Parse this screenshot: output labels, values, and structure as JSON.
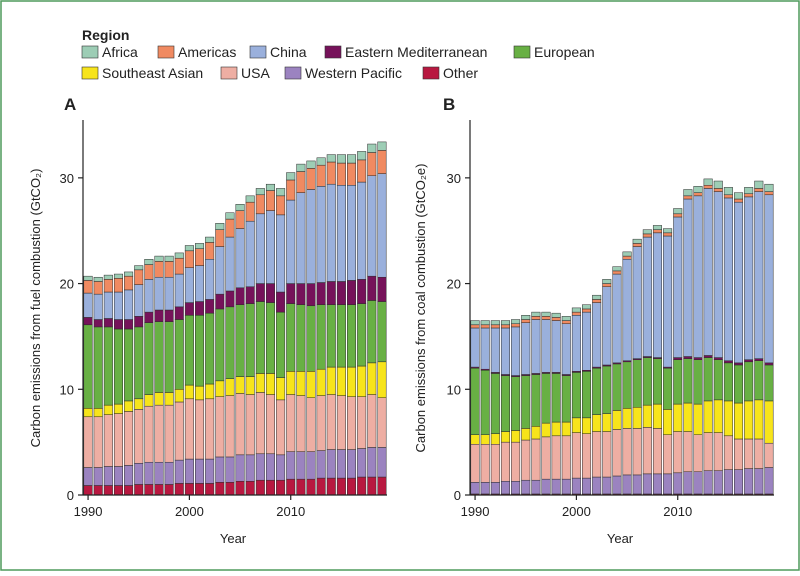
{
  "legend": {
    "title": "Region",
    "entries": [
      {
        "name": "Africa",
        "color": "#9dcdb5"
      },
      {
        "name": "Americas",
        "color": "#f08a61"
      },
      {
        "name": "China",
        "color": "#9ab0dc"
      },
      {
        "name": "Eastern Mediterranean",
        "color": "#76125a"
      },
      {
        "name": "European",
        "color": "#68b044"
      },
      {
        "name": "Southeast Asian",
        "color": "#f7e41b"
      },
      {
        "name": "USA",
        "color": "#eeaea3"
      },
      {
        "name": "Western Pacific",
        "color": "#9b83c0"
      },
      {
        "name": "Other",
        "color": "#b81840"
      }
    ]
  },
  "chart_data": [
    {
      "type": "bar",
      "stacked": true,
      "panel_label": "A",
      "xlabel": "Year",
      "ylabel": "Carbon emissions from fuel combustion (GtCO₂)",
      "ylim": [
        0,
        35
      ],
      "yticks": [
        0,
        10,
        20,
        30
      ],
      "xticks": [
        1990,
        2000,
        2010
      ],
      "categories": [
        1990,
        1991,
        1992,
        1993,
        1994,
        1995,
        1996,
        1997,
        1998,
        1999,
        2000,
        2001,
        2002,
        2003,
        2004,
        2005,
        2006,
        2007,
        2008,
        2009,
        2010,
        2011,
        2012,
        2013,
        2014,
        2015,
        2016,
        2017,
        2018,
        2019
      ],
      "series": [
        {
          "name": "Other",
          "values": [
            0.9,
            0.9,
            0.9,
            0.9,
            0.9,
            1.0,
            1.0,
            1.0,
            1.0,
            1.1,
            1.1,
            1.1,
            1.1,
            1.2,
            1.2,
            1.3,
            1.3,
            1.4,
            1.4,
            1.4,
            1.5,
            1.5,
            1.5,
            1.6,
            1.6,
            1.6,
            1.6,
            1.7,
            1.7,
            1.7
          ]
        },
        {
          "name": "Western Pacific",
          "values": [
            1.7,
            1.7,
            1.8,
            1.8,
            1.9,
            2.0,
            2.1,
            2.1,
            2.1,
            2.2,
            2.3,
            2.3,
            2.3,
            2.4,
            2.4,
            2.5,
            2.5,
            2.5,
            2.5,
            2.4,
            2.6,
            2.6,
            2.6,
            2.6,
            2.7,
            2.7,
            2.7,
            2.7,
            2.8,
            2.8
          ]
        },
        {
          "name": "USA",
          "values": [
            4.8,
            4.8,
            4.9,
            5.0,
            5.1,
            5.1,
            5.3,
            5.4,
            5.4,
            5.5,
            5.7,
            5.6,
            5.7,
            5.7,
            5.8,
            5.8,
            5.7,
            5.8,
            5.6,
            5.2,
            5.4,
            5.3,
            5.1,
            5.2,
            5.2,
            5.1,
            5.0,
            4.9,
            5.0,
            4.7
          ]
        },
        {
          "name": "Southeast Asian",
          "values": [
            0.8,
            0.8,
            0.9,
            0.9,
            1.0,
            1.0,
            1.1,
            1.2,
            1.2,
            1.2,
            1.3,
            1.3,
            1.4,
            1.5,
            1.6,
            1.6,
            1.7,
            1.8,
            2.0,
            2.1,
            2.2,
            2.3,
            2.5,
            2.5,
            2.6,
            2.7,
            2.8,
            2.9,
            3.0,
            3.4
          ]
        },
        {
          "name": "European",
          "values": [
            7.9,
            7.7,
            7.4,
            7.1,
            6.8,
            6.8,
            6.8,
            6.7,
            6.7,
            6.6,
            6.6,
            6.7,
            6.7,
            6.8,
            6.8,
            6.8,
            6.9,
            6.8,
            6.7,
            6.2,
            6.4,
            6.3,
            6.2,
            6.1,
            5.9,
            5.9,
            5.9,
            5.9,
            5.9,
            5.7
          ]
        },
        {
          "name": "Eastern Mediterranean",
          "values": [
            0.7,
            0.7,
            0.8,
            0.9,
            0.9,
            1.0,
            1.0,
            1.1,
            1.1,
            1.2,
            1.2,
            1.3,
            1.3,
            1.4,
            1.5,
            1.6,
            1.6,
            1.7,
            1.8,
            1.9,
            1.9,
            2.0,
            2.1,
            2.1,
            2.2,
            2.2,
            2.3,
            2.3,
            2.3,
            2.3
          ]
        },
        {
          "name": "China",
          "values": [
            2.3,
            2.4,
            2.5,
            2.6,
            2.8,
            3.0,
            3.1,
            3.1,
            3.1,
            3.1,
            3.3,
            3.4,
            3.8,
            4.5,
            5.1,
            5.6,
            6.2,
            6.6,
            6.9,
            7.3,
            7.9,
            8.6,
            8.9,
            9.1,
            9.2,
            9.1,
            9.0,
            9.2,
            9.5,
            9.8
          ]
        },
        {
          "name": "Americas",
          "values": [
            1.2,
            1.2,
            1.2,
            1.3,
            1.3,
            1.4,
            1.4,
            1.5,
            1.5,
            1.5,
            1.6,
            1.6,
            1.6,
            1.6,
            1.7,
            1.7,
            1.8,
            1.8,
            1.9,
            1.8,
            1.9,
            2.0,
            2.0,
            2.0,
            2.1,
            2.1,
            2.1,
            2.1,
            2.2,
            2.2
          ]
        },
        {
          "name": "Africa",
          "values": [
            0.4,
            0.4,
            0.4,
            0.4,
            0.4,
            0.4,
            0.5,
            0.5,
            0.5,
            0.5,
            0.5,
            0.5,
            0.5,
            0.6,
            0.6,
            0.6,
            0.6,
            0.6,
            0.6,
            0.7,
            0.7,
            0.7,
            0.7,
            0.7,
            0.7,
            0.8,
            0.8,
            0.8,
            0.8,
            0.8
          ]
        }
      ]
    },
    {
      "type": "bar",
      "stacked": true,
      "panel_label": "B",
      "xlabel": "Year",
      "ylabel": "Carbon emissions from coal combustion (GtCO₂e)",
      "ylim": [
        0,
        35
      ],
      "yticks": [
        0,
        10,
        20,
        30
      ],
      "xticks": [
        1990,
        2000,
        2010
      ],
      "categories": [
        1990,
        1991,
        1992,
        1993,
        1994,
        1995,
        1996,
        1997,
        1998,
        1999,
        2000,
        2001,
        2002,
        2003,
        2004,
        2005,
        2006,
        2007,
        2008,
        2009,
        2010,
        2011,
        2012,
        2013,
        2014,
        2015,
        2016,
        2017,
        2018,
        2019
      ],
      "series": [
        {
          "name": "Other",
          "values": [
            0.1,
            0.1,
            0.1,
            0.1,
            0.1,
            0.1,
            0.1,
            0.1,
            0.1,
            0.1,
            0.1,
            0.1,
            0.1,
            0.1,
            0.1,
            0.1,
            0.1,
            0.1,
            0.1,
            0.1,
            0.1,
            0.1,
            0.1,
            0.1,
            0.1,
            0.1,
            0.1,
            0.1,
            0.1,
            0.1
          ]
        },
        {
          "name": "Western Pacific",
          "values": [
            1.1,
            1.1,
            1.1,
            1.2,
            1.2,
            1.3,
            1.3,
            1.4,
            1.4,
            1.4,
            1.5,
            1.5,
            1.6,
            1.6,
            1.7,
            1.8,
            1.8,
            1.9,
            1.9,
            1.9,
            2.0,
            2.1,
            2.1,
            2.2,
            2.2,
            2.3,
            2.3,
            2.4,
            2.4,
            2.5
          ]
        },
        {
          "name": "USA",
          "values": [
            3.6,
            3.6,
            3.6,
            3.7,
            3.7,
            3.8,
            3.9,
            4.0,
            4.1,
            4.1,
            4.3,
            4.2,
            4.3,
            4.3,
            4.4,
            4.4,
            4.4,
            4.4,
            4.3,
            3.7,
            3.9,
            3.8,
            3.5,
            3.6,
            3.6,
            3.2,
            2.9,
            2.8,
            2.8,
            2.3
          ]
        },
        {
          "name": "Southeast Asian",
          "values": [
            0.9,
            0.9,
            1.0,
            1.0,
            1.1,
            1.1,
            1.2,
            1.3,
            1.3,
            1.3,
            1.4,
            1.5,
            1.6,
            1.7,
            1.8,
            1.9,
            2.0,
            2.1,
            2.3,
            2.4,
            2.6,
            2.7,
            2.9,
            3.0,
            3.1,
            3.3,
            3.4,
            3.6,
            3.7,
            4.0
          ]
        },
        {
          "name": "European",
          "values": [
            6.3,
            6.1,
            5.7,
            5.3,
            5.1,
            5.0,
            4.9,
            4.7,
            4.6,
            4.4,
            4.3,
            4.4,
            4.4,
            4.5,
            4.4,
            4.4,
            4.5,
            4.5,
            4.3,
            3.9,
            4.2,
            4.2,
            4.2,
            4.1,
            3.8,
            3.6,
            3.6,
            3.7,
            3.7,
            3.4
          ]
        },
        {
          "name": "Eastern Mediterranean",
          "values": [
            0.1,
            0.1,
            0.1,
            0.1,
            0.1,
            0.1,
            0.1,
            0.1,
            0.1,
            0.1,
            0.1,
            0.1,
            0.1,
            0.1,
            0.1,
            0.1,
            0.1,
            0.1,
            0.1,
            0.1,
            0.2,
            0.2,
            0.2,
            0.2,
            0.2,
            0.2,
            0.2,
            0.2,
            0.2,
            0.2
          ]
        },
        {
          "name": "China",
          "values": [
            3.7,
            3.9,
            4.2,
            4.4,
            4.6,
            4.9,
            5.1,
            5.0,
            4.9,
            4.8,
            5.3,
            5.5,
            6.1,
            7.4,
            8.4,
            9.6,
            10.6,
            11.3,
            11.8,
            12.4,
            13.3,
            14.9,
            15.3,
            15.8,
            15.7,
            15.4,
            15.2,
            15.4,
            15.8,
            15.9
          ]
        },
        {
          "name": "Americas",
          "values": [
            0.3,
            0.3,
            0.3,
            0.3,
            0.3,
            0.3,
            0.3,
            0.3,
            0.3,
            0.3,
            0.3,
            0.3,
            0.3,
            0.3,
            0.3,
            0.3,
            0.3,
            0.3,
            0.3,
            0.3,
            0.3,
            0.3,
            0.3,
            0.3,
            0.3,
            0.3,
            0.3,
            0.3,
            0.3,
            0.3
          ]
        },
        {
          "name": "Africa",
          "values": [
            0.4,
            0.4,
            0.4,
            0.4,
            0.4,
            0.4,
            0.4,
            0.4,
            0.4,
            0.4,
            0.4,
            0.4,
            0.4,
            0.4,
            0.4,
            0.4,
            0.4,
            0.4,
            0.4,
            0.4,
            0.5,
            0.6,
            0.6,
            0.6,
            0.7,
            0.7,
            0.6,
            0.6,
            0.7,
            0.7
          ]
        }
      ]
    }
  ]
}
